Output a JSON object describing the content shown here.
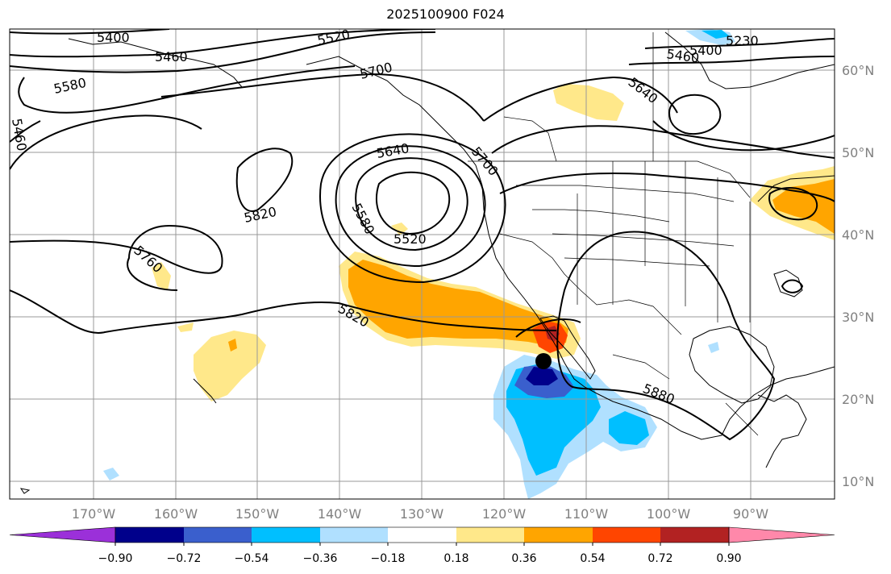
{
  "title": "2025100900 F024",
  "lon_labels": [
    "170°W",
    "160°W",
    "150°W",
    "140°W",
    "130°W",
    "120°W",
    "110°W",
    "100°W",
    "90°W"
  ],
  "lat_labels": [
    "60°N",
    "50°N",
    "40°N",
    "30°N",
    "20°N",
    "10°N"
  ],
  "contour_labels": [
    "5400",
    "5460",
    "5520",
    "5580",
    "5700",
    "5640",
    "5460",
    "5400",
    "5230",
    "5460",
    "5640",
    "5700",
    "5820",
    "5760",
    "5580",
    "5520",
    "5820",
    "5880"
  ],
  "colorbar": {
    "ticks": [
      "−0.90",
      "−0.72",
      "−0.54",
      "−0.36",
      "−0.18",
      "0.18",
      "0.36",
      "0.54",
      "0.72",
      "0.90"
    ],
    "colors": [
      "#9b30d9",
      "#00008b",
      "#3a5fcd",
      "#00bfff",
      "#b0e0ff",
      "#ffffff",
      "#ffe88a",
      "#ffa500",
      "#ff4500",
      "#b22222",
      "#ff88aa"
    ]
  },
  "fill_colors": {
    "light_yellow": "#ffe88a",
    "orange": "#ffa500",
    "red": "#ff4500",
    "light_blue": "#b0e0ff",
    "blue": "#00bfff",
    "mid_blue": "#3a5fcd",
    "navy": "#00008b"
  },
  "marker_icon": "black-dot"
}
